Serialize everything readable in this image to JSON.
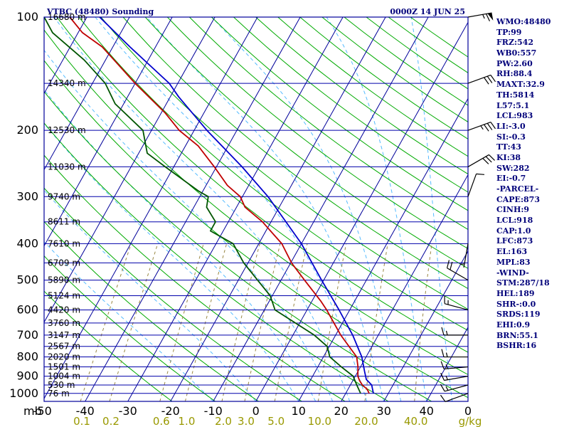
{
  "header": {
    "station": "VTBC (48480) Sounding",
    "time": "0000Z 14 JUN 25"
  },
  "indices": [
    "WMO:48480",
    "TP:99",
    "FRZ:542",
    "WB0:557",
    "PW:2.60",
    "RH:88.4",
    "MAXT:32.9",
    "TH:5814",
    "L57:5.1",
    "LCL:983",
    "LI:-3.0",
    "SI:-0.3",
    "TT:43",
    "KI:38",
    "SW:282",
    "EI:-0.7",
    "-PARCEL-",
    "CAPE:873",
    "CINH:9",
    "LCL:918",
    "CAP:1.0",
    "LFC:873",
    "EL:163",
    "MPL:83",
    "-WIND-",
    "STM:287/18",
    "HEL:189",
    "SHR-:0.0",
    "SRDS:119",
    "EHI:0.9",
    "BRN:55.1",
    "BSHR:16"
  ],
  "colors": {
    "frame": "#00009a",
    "isobar": "#0000aa",
    "isotherm": "#00009a",
    "dry_adiabat": "#00aa00",
    "moist_adiabat": "#55bbff",
    "mixing_ratio": "#998844",
    "temperature": "#c00000",
    "dewpoint": "#005500",
    "parcel": "#0000cc",
    "wind_barb": "#000000"
  },
  "chart_data": {
    "type": "skew-t",
    "pressure_labels": [
      100,
      200,
      300,
      400,
      500,
      600,
      700,
      800,
      900,
      1000
    ],
    "pressure_unit": "mb",
    "temperature_ticks": [
      -50,
      -40,
      -30,
      -20,
      -10,
      0,
      10,
      20,
      30,
      40,
      0
    ],
    "mixing_ratio_unit": "g/kg",
    "mixing_ratio_ticks": [
      {
        "label": "0.1",
        "value": 0.1
      },
      {
        "label": "0.2",
        "value": 0.2
      },
      {
        "label": "0.6",
        "value": 0.6
      },
      {
        "label": "1.0",
        "value": 1.0
      },
      {
        "label": "2.0",
        "value": 2.0
      },
      {
        "label": "3.0",
        "value": 3.0
      },
      {
        "label": "5.0",
        "value": 5.0
      },
      {
        "label": "10.0",
        "value": 10.0
      },
      {
        "label": "20.0",
        "value": 20.0
      },
      {
        "label": "40.0",
        "value": 40.0
      }
    ],
    "height_labels": [
      {
        "p": 100,
        "label": "16680 m"
      },
      {
        "p": 150,
        "label": "14340 m"
      },
      {
        "p": 200,
        "label": "12530 m"
      },
      {
        "p": 250,
        "label": "11030 m"
      },
      {
        "p": 300,
        "label": "9740 m"
      },
      {
        "p": 350,
        "label": "8611 m"
      },
      {
        "p": 400,
        "label": "7610 m"
      },
      {
        "p": 450,
        "label": "6709 m"
      },
      {
        "p": 500,
        "label": "5890 m"
      },
      {
        "p": 550,
        "label": "5124 m"
      },
      {
        "p": 600,
        "label": "4420 m"
      },
      {
        "p": 650,
        "label": "3760 m"
      },
      {
        "p": 700,
        "label": "3147 m"
      },
      {
        "p": 750,
        "label": "2567 m"
      },
      {
        "p": 800,
        "label": "2020 m"
      },
      {
        "p": 850,
        "label": "1501 m"
      },
      {
        "p": 900,
        "label": "1004 m"
      },
      {
        "p": 950,
        "label": "530 m"
      },
      {
        "p": 1000,
        "label": "76 m"
      }
    ],
    "temperature_profile": [
      {
        "p": 1000,
        "t": 25.5
      },
      {
        "p": 975,
        "t": 24.5
      },
      {
        "p": 950,
        "t": 22.8
      },
      {
        "p": 925,
        "t": 21.6
      },
      {
        "p": 900,
        "t": 20.6
      },
      {
        "p": 850,
        "t": 19.4
      },
      {
        "p": 800,
        "t": 17.8
      },
      {
        "p": 700,
        "t": 11.2
      },
      {
        "p": 600,
        "t": 4.6
      },
      {
        "p": 570,
        "t": 2.2
      },
      {
        "p": 500,
        "t": -4.5
      },
      {
        "p": 450,
        "t": -9.8
      },
      {
        "p": 400,
        "t": -14.6
      },
      {
        "p": 350,
        "t": -22.0
      },
      {
        "p": 320,
        "t": -28.0
      },
      {
        "p": 300,
        "t": -30.5
      },
      {
        "p": 280,
        "t": -35.0
      },
      {
        "p": 250,
        "t": -40.5
      },
      {
        "p": 220,
        "t": -47.0
      },
      {
        "p": 200,
        "t": -53.5
      },
      {
        "p": 180,
        "t": -59.0
      },
      {
        "p": 150,
        "t": -70.0
      },
      {
        "p": 130,
        "t": -78.0
      },
      {
        "p": 120,
        "t": -82.5
      },
      {
        "p": 110,
        "t": -89.0
      },
      {
        "p": 100,
        "t": -94.0
      }
    ],
    "dewpoint_profile": [
      {
        "p": 1000,
        "t": 23.5
      },
      {
        "p": 950,
        "t": 21.5
      },
      {
        "p": 900,
        "t": 19.5
      },
      {
        "p": 850,
        "t": 15.5
      },
      {
        "p": 800,
        "t": 11.5
      },
      {
        "p": 750,
        "t": 9.5
      },
      {
        "p": 700,
        "t": 5.0
      },
      {
        "p": 650,
        "t": -1.0
      },
      {
        "p": 600,
        "t": -7.5
      },
      {
        "p": 550,
        "t": -10.5
      },
      {
        "p": 500,
        "t": -15.5
      },
      {
        "p": 450,
        "t": -21.0
      },
      {
        "p": 400,
        "t": -26.0
      },
      {
        "p": 370,
        "t": -33.0
      },
      {
        "p": 350,
        "t": -33.0
      },
      {
        "p": 320,
        "t": -37.0
      },
      {
        "p": 300,
        "t": -38.0
      },
      {
        "p": 290,
        "t": -41.0
      },
      {
        "p": 250,
        "t": -52.0
      },
      {
        "p": 230,
        "t": -58.0
      },
      {
        "p": 200,
        "t": -62.0
      },
      {
        "p": 170,
        "t": -72.0
      },
      {
        "p": 150,
        "t": -77.0
      },
      {
        "p": 130,
        "t": -85.0
      },
      {
        "p": 110,
        "t": -96.0
      },
      {
        "p": 100,
        "t": -100.0
      }
    ],
    "parcel_profile": [
      {
        "p": 1000,
        "t": 26.5
      },
      {
        "p": 950,
        "t": 25.0
      },
      {
        "p": 918,
        "t": 23.0
      },
      {
        "p": 873,
        "t": 21.5
      },
      {
        "p": 800,
        "t": 19.0
      },
      {
        "p": 700,
        "t": 14.0
      },
      {
        "p": 600,
        "t": 7.5
      },
      {
        "p": 500,
        "t": -0.5
      },
      {
        "p": 400,
        "t": -10.0
      },
      {
        "p": 300,
        "t": -24.0
      },
      {
        "p": 250,
        "t": -34.0
      },
      {
        "p": 200,
        "t": -47.0
      },
      {
        "p": 163,
        "t": -58.0
      },
      {
        "p": 150,
        "t": -62.0
      },
      {
        "p": 120,
        "t": -76.0
      },
      {
        "p": 100,
        "t": -87.0
      }
    ],
    "wind_profile": [
      {
        "p": 1000,
        "dir": 250,
        "spd": 10
      },
      {
        "p": 950,
        "dir": 255,
        "spd": 15
      },
      {
        "p": 900,
        "dir": 260,
        "spd": 15
      },
      {
        "p": 850,
        "dir": 265,
        "spd": 15
      },
      {
        "p": 800,
        "dir": 270,
        "spd": 15
      },
      {
        "p": 700,
        "dir": 270,
        "spd": 15
      },
      {
        "p": 600,
        "dir": 285,
        "spd": 15
      },
      {
        "p": 500,
        "dir": 300,
        "spd": 20
      },
      {
        "p": 400,
        "dir": 190,
        "spd": 5
      },
      {
        "p": 300,
        "dir": 20,
        "spd": 10
      },
      {
        "p": 250,
        "dir": 60,
        "spd": 30
      },
      {
        "p": 200,
        "dir": 70,
        "spd": 35
      },
      {
        "p": 150,
        "dir": 70,
        "spd": 30
      },
      {
        "p": 100,
        "dir": 80,
        "spd": 65
      }
    ]
  }
}
